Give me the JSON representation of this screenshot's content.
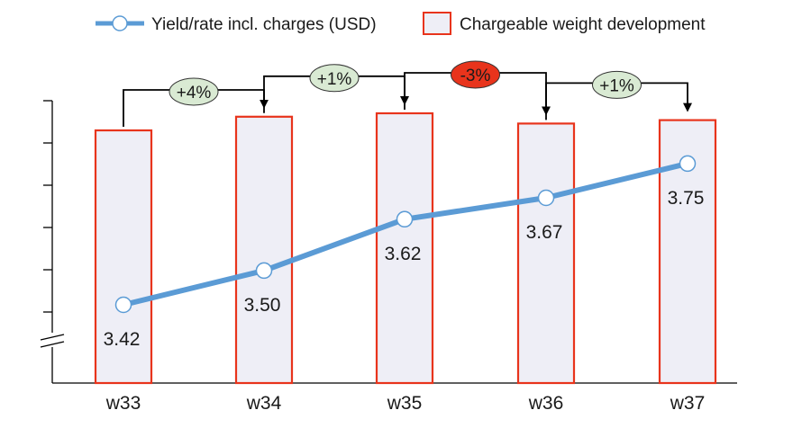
{
  "chart_data": {
    "type": "bar",
    "categories": [
      "w33",
      "w34",
      "w35",
      "w36",
      "w37"
    ],
    "series": [
      {
        "name": "Yield/rate incl. charges (USD)",
        "type": "line",
        "values": [
          3.42,
          3.5,
          3.62,
          3.67,
          3.75
        ],
        "color": "#5b9bd5"
      },
      {
        "name": "Chargeable weight development",
        "type": "bar",
        "values": [
          100,
          104,
          105,
          102,
          103
        ],
        "color_fill": "#eeeef6",
        "color_edge": "#e8341c"
      }
    ],
    "data_labels": [
      "3.42",
      "3.50",
      "3.62",
      "3.67",
      "3.75"
    ],
    "changes": [
      {
        "from": "w33",
        "to": "w34",
        "label": "+4%",
        "color": "#d9ead3"
      },
      {
        "from": "w34",
        "to": "w35",
        "label": "+1%",
        "color": "#d9ead3"
      },
      {
        "from": "w35",
        "to": "w36",
        "label": "-3%",
        "color": "#e8341c"
      },
      {
        "from": "w36",
        "to": "w37",
        "label": "+1%",
        "color": "#d9ead3"
      }
    ],
    "legend": {
      "position": "top"
    },
    "y_axis_break": true
  }
}
